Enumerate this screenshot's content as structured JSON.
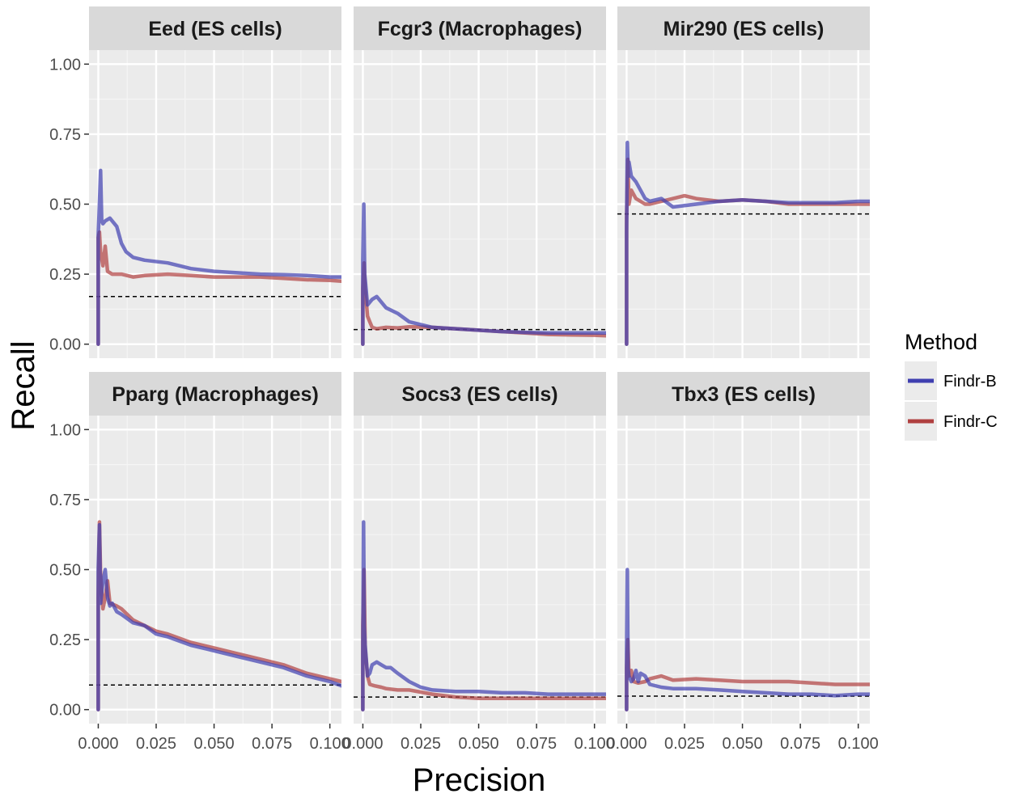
{
  "chart_data": {
    "type": "line",
    "xlabel": "Precision",
    "ylabel": "Recall",
    "xlim": [
      -0.004,
      0.105
    ],
    "ylim": [
      -0.05,
      1.05
    ],
    "x_ticks": [
      0,
      0.025,
      0.05,
      0.075,
      0.1
    ],
    "x_tick_labels": [
      "0.000",
      "0.025",
      "0.050",
      "0.075",
      "0.100"
    ],
    "y_ticks": [
      0,
      0.25,
      0.5,
      0.75,
      1.0
    ],
    "y_tick_labels": [
      "0.00",
      "0.25",
      "0.50",
      "0.75",
      "1.00"
    ],
    "grid": true,
    "legend": {
      "title": "Method",
      "position": "right",
      "entries": [
        {
          "label": "Findr-B",
          "color": "#3f3fb0"
        },
        {
          "label": "Findr-C",
          "color": "#b04040"
        }
      ]
    },
    "panels": [
      {
        "title": "Eed (ES cells)",
        "baseline": 0.17,
        "series": [
          {
            "name": "Findr-B",
            "color": "#3f3fb0",
            "x": [
              0,
              0,
              0.0005,
              0.001,
              0.0015,
              0.002,
              0.003,
              0.005,
              0.008,
              0.01,
              0.012,
              0.015,
              0.02,
              0.03,
              0.04,
              0.05,
              0.06,
              0.07,
              0.08,
              0.09,
              0.1,
              0.105
            ],
            "y": [
              0,
              0.39,
              0.5,
              0.62,
              0.44,
              0.43,
              0.44,
              0.45,
              0.42,
              0.36,
              0.33,
              0.31,
              0.3,
              0.29,
              0.27,
              0.26,
              0.255,
              0.25,
              0.248,
              0.245,
              0.24,
              0.24
            ]
          },
          {
            "name": "Findr-C",
            "color": "#b04040",
            "x": [
              0,
              0,
              0.0005,
              0.001,
              0.002,
              0.003,
              0.004,
              0.006,
              0.01,
              0.015,
              0.02,
              0.03,
              0.04,
              0.05,
              0.06,
              0.07,
              0.08,
              0.09,
              0.1,
              0.105
            ],
            "y": [
              0,
              0.38,
              0.4,
              0.33,
              0.28,
              0.35,
              0.26,
              0.25,
              0.25,
              0.24,
              0.245,
              0.25,
              0.245,
              0.24,
              0.24,
              0.24,
              0.235,
              0.23,
              0.228,
              0.225
            ]
          }
        ]
      },
      {
        "title": "Fcgr3 (Macrophages)",
        "baseline": 0.052,
        "series": [
          {
            "name": "Findr-B",
            "color": "#3f3fb0",
            "x": [
              0,
              0,
              0.0004,
              0.0008,
              0.002,
              0.004,
              0.006,
              0.01,
              0.015,
              0.02,
              0.03,
              0.04,
              0.05,
              0.06,
              0.07,
              0.08,
              0.09,
              0.1,
              0.105
            ],
            "y": [
              0,
              0.3,
              0.5,
              0.25,
              0.14,
              0.16,
              0.17,
              0.13,
              0.11,
              0.08,
              0.06,
              0.055,
              0.05,
              0.045,
              0.042,
              0.04,
              0.04,
              0.04,
              0.04
            ]
          },
          {
            "name": "Findr-C",
            "color": "#b04040",
            "x": [
              0,
              0,
              0.0005,
              0.001,
              0.002,
              0.003,
              0.004,
              0.006,
              0.01,
              0.015,
              0.02,
              0.03,
              0.04,
              0.05,
              0.06,
              0.07,
              0.08,
              0.09,
              0.1,
              0.105
            ],
            "y": [
              0,
              0.2,
              0.29,
              0.2,
              0.1,
              0.08,
              0.06,
              0.055,
              0.06,
              0.058,
              0.062,
              0.06,
              0.055,
              0.05,
              0.045,
              0.04,
              0.035,
              0.033,
              0.032,
              0.03
            ]
          }
        ]
      },
      {
        "title": "Mir290 (ES cells)",
        "baseline": 0.465,
        "series": [
          {
            "name": "Findr-B",
            "color": "#3f3fb0",
            "x": [
              0,
              0,
              0.0003,
              0.0007,
              0.001,
              0.002,
              0.004,
              0.006,
              0.008,
              0.01,
              0.015,
              0.02,
              0.03,
              0.04,
              0.05,
              0.06,
              0.07,
              0.08,
              0.09,
              0.1,
              0.105
            ],
            "y": [
              0,
              0.4,
              0.72,
              0.6,
              0.65,
              0.6,
              0.58,
              0.55,
              0.52,
              0.51,
              0.52,
              0.49,
              0.5,
              0.51,
              0.515,
              0.51,
              0.505,
              0.505,
              0.505,
              0.51,
              0.51
            ]
          },
          {
            "name": "Findr-C",
            "color": "#b04040",
            "x": [
              0,
              0,
              0.0005,
              0.001,
              0.002,
              0.004,
              0.006,
              0.008,
              0.01,
              0.015,
              0.02,
              0.025,
              0.03,
              0.04,
              0.05,
              0.06,
              0.07,
              0.08,
              0.09,
              0.1,
              0.105
            ],
            "y": [
              0,
              0.45,
              0.66,
              0.5,
              0.55,
              0.52,
              0.51,
              0.5,
              0.5,
              0.51,
              0.52,
              0.53,
              0.52,
              0.51,
              0.515,
              0.51,
              0.5,
              0.5,
              0.5,
              0.5,
              0.5
            ]
          }
        ]
      },
      {
        "title": "Pparg (Macrophages)",
        "baseline": 0.088,
        "series": [
          {
            "name": "Findr-B",
            "color": "#3f3fb0",
            "x": [
              0,
              0,
              0.0005,
              0.001,
              0.002,
              0.003,
              0.004,
              0.005,
              0.006,
              0.008,
              0.01,
              0.015,
              0.02,
              0.025,
              0.03,
              0.04,
              0.05,
              0.06,
              0.07,
              0.08,
              0.09,
              0.1,
              0.105
            ],
            "y": [
              0,
              0.5,
              0.66,
              0.38,
              0.46,
              0.5,
              0.4,
              0.37,
              0.38,
              0.35,
              0.34,
              0.31,
              0.3,
              0.27,
              0.26,
              0.23,
              0.21,
              0.19,
              0.17,
              0.15,
              0.12,
              0.1,
              0.085
            ]
          },
          {
            "name": "Findr-C",
            "color": "#b04040",
            "x": [
              0,
              0,
              0.0005,
              0.001,
              0.002,
              0.003,
              0.004,
              0.005,
              0.008,
              0.01,
              0.015,
              0.02,
              0.025,
              0.03,
              0.04,
              0.05,
              0.06,
              0.07,
              0.08,
              0.09,
              0.1,
              0.105
            ],
            "y": [
              0,
              0.4,
              0.67,
              0.48,
              0.36,
              0.4,
              0.46,
              0.38,
              0.37,
              0.36,
              0.32,
              0.3,
              0.28,
              0.27,
              0.24,
              0.22,
              0.2,
              0.18,
              0.16,
              0.13,
              0.11,
              0.1
            ]
          }
        ]
      },
      {
        "title": "Socs3 (ES cells)",
        "baseline": 0.045,
        "series": [
          {
            "name": "Findr-B",
            "color": "#3f3fb0",
            "x": [
              0,
              0,
              0.0003,
              0.0006,
              0.001,
              0.002,
              0.003,
              0.004,
              0.006,
              0.008,
              0.01,
              0.012,
              0.015,
              0.02,
              0.025,
              0.03,
              0.04,
              0.05,
              0.06,
              0.07,
              0.08,
              0.09,
              0.1,
              0.105
            ],
            "y": [
              0,
              0.2,
              0.67,
              0.3,
              0.23,
              0.12,
              0.13,
              0.16,
              0.17,
              0.16,
              0.15,
              0.15,
              0.13,
              0.1,
              0.08,
              0.07,
              0.065,
              0.065,
              0.06,
              0.06,
              0.055,
              0.055,
              0.055,
              0.055
            ]
          },
          {
            "name": "Findr-C",
            "color": "#b04040",
            "x": [
              0,
              0,
              0.0005,
              0.001,
              0.002,
              0.003,
              0.005,
              0.008,
              0.01,
              0.015,
              0.02,
              0.03,
              0.04,
              0.05,
              0.06,
              0.07,
              0.08,
              0.09,
              0.1,
              0.105
            ],
            "y": [
              0,
              0.3,
              0.5,
              0.22,
              0.12,
              0.09,
              0.085,
              0.08,
              0.075,
              0.07,
              0.07,
              0.055,
              0.045,
              0.04,
              0.04,
              0.04,
              0.04,
              0.04,
              0.04,
              0.04
            ]
          }
        ]
      },
      {
        "title": "Tbx3 (ES cells)",
        "baseline": 0.048,
        "series": [
          {
            "name": "Findr-B",
            "color": "#3f3fb0",
            "x": [
              0,
              0,
              0.0003,
              0.0006,
              0.001,
              0.002,
              0.003,
              0.004,
              0.005,
              0.006,
              0.008,
              0.01,
              0.015,
              0.02,
              0.03,
              0.04,
              0.05,
              0.06,
              0.07,
              0.08,
              0.09,
              0.1,
              0.105
            ],
            "y": [
              0,
              0.2,
              0.5,
              0.15,
              0.12,
              0.1,
              0.11,
              0.14,
              0.1,
              0.13,
              0.12,
              0.09,
              0.08,
              0.075,
              0.075,
              0.07,
              0.065,
              0.06,
              0.055,
              0.055,
              0.05,
              0.055,
              0.055
            ]
          },
          {
            "name": "Findr-C",
            "color": "#b04040",
            "x": [
              0,
              0,
              0.0005,
              0.001,
              0.002,
              0.003,
              0.005,
              0.008,
              0.01,
              0.015,
              0.02,
              0.03,
              0.04,
              0.05,
              0.06,
              0.07,
              0.08,
              0.09,
              0.1,
              0.105
            ],
            "y": [
              0,
              0.15,
              0.25,
              0.12,
              0.14,
              0.1,
              0.095,
              0.1,
              0.11,
              0.12,
              0.105,
              0.11,
              0.105,
              0.1,
              0.1,
              0.1,
              0.095,
              0.09,
              0.09,
              0.09
            ]
          }
        ]
      }
    ]
  }
}
